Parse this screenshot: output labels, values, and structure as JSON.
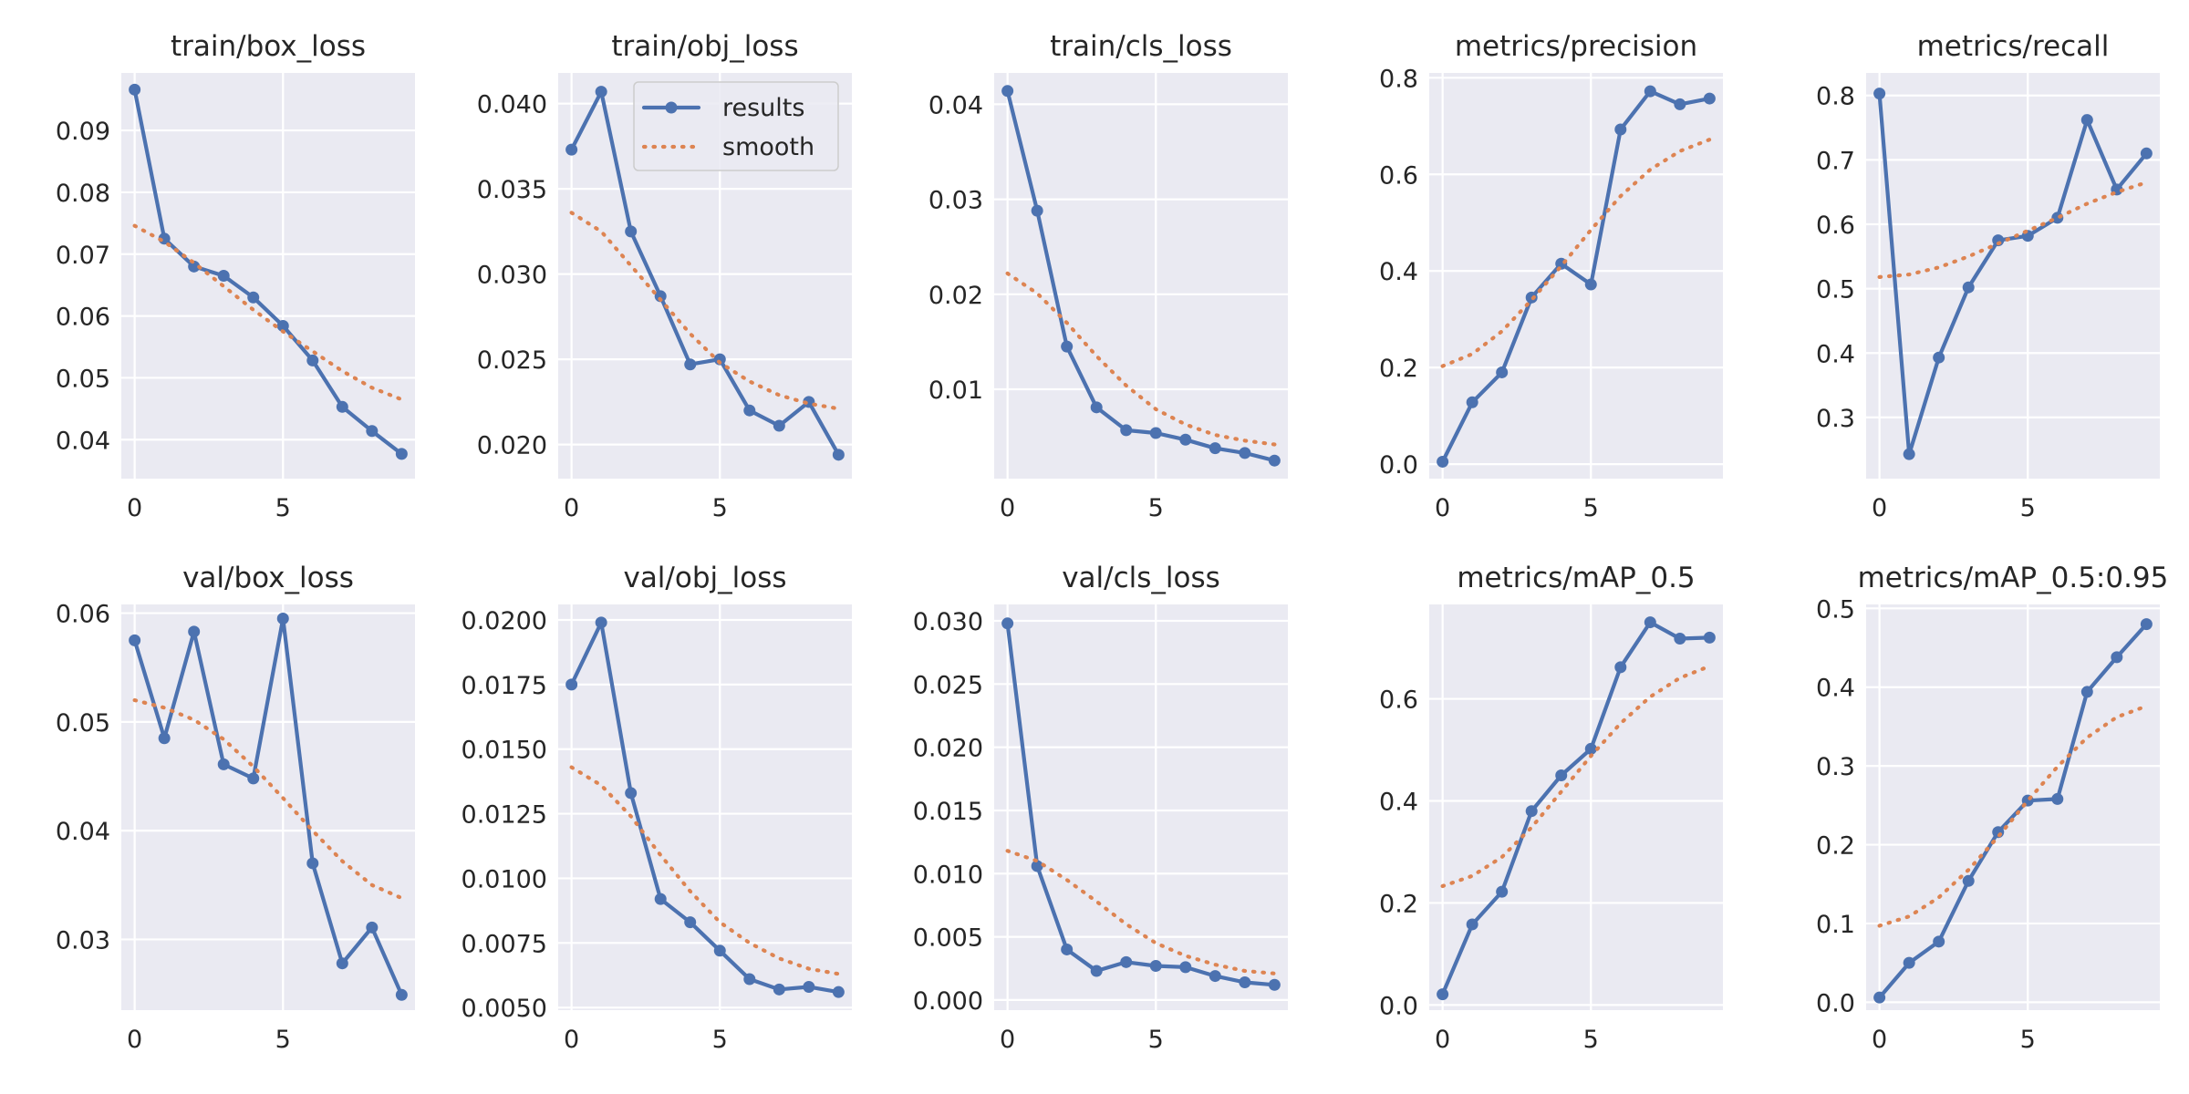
{
  "colors": {
    "background": "#ffffff",
    "plot_bg": "#eaeaf2",
    "grid": "#ffffff",
    "results": "#4c72b0",
    "smooth": "#dd8452",
    "text": "#262626"
  },
  "legend": {
    "results_label": "results",
    "smooth_label": "smooth"
  },
  "chart_data": [
    {
      "type": "line",
      "title": "train/box_loss",
      "x": [
        0,
        1,
        2,
        3,
        4,
        5,
        6,
        7,
        8,
        9
      ],
      "xlim": [
        -0.45,
        9.45
      ],
      "xticks": [
        0,
        5
      ],
      "ylim": [
        0.0337,
        0.0993
      ],
      "yticks": [
        0.04,
        0.05,
        0.06,
        0.07,
        0.08,
        0.09
      ],
      "yticklabels": [
        "0.04",
        "0.05",
        "0.06",
        "0.07",
        "0.08",
        "0.09"
      ],
      "series": [
        {
          "name": "results",
          "values": [
            0.0966,
            0.0725,
            0.068,
            0.0665,
            0.063,
            0.0584,
            0.0528,
            0.0453,
            0.0414,
            0.0377
          ]
        },
        {
          "name": "smooth",
          "values": [
            0.0746,
            0.072,
            0.0686,
            0.0648,
            0.061,
            0.0575,
            0.0543,
            0.0511,
            0.0484,
            0.0465
          ]
        }
      ]
    },
    {
      "type": "line",
      "title": "train/obj_loss",
      "x": [
        0,
        1,
        2,
        3,
        4,
        5,
        6,
        7,
        8,
        9
      ],
      "xlim": [
        -0.45,
        9.45
      ],
      "xticks": [
        0,
        5
      ],
      "ylim": [
        0.018,
        0.0418
      ],
      "yticks": [
        0.02,
        0.025,
        0.03,
        0.035,
        0.04
      ],
      "yticklabels": [
        "0.020",
        "0.025",
        "0.030",
        "0.035",
        "0.040"
      ],
      "legend": true,
      "series": [
        {
          "name": "results",
          "values": [
            0.0373,
            0.0407,
            0.0325,
            0.0287,
            0.0247,
            0.025,
            0.022,
            0.0211,
            0.0225,
            0.0194
          ]
        },
        {
          "name": "smooth",
          "values": [
            0.0336,
            0.0325,
            0.0305,
            0.0285,
            0.0265,
            0.0248,
            0.0237,
            0.0229,
            0.0224,
            0.0221
          ]
        }
      ]
    },
    {
      "type": "line",
      "title": "train/cls_loss",
      "x": [
        0,
        1,
        2,
        3,
        4,
        5,
        6,
        7,
        8,
        9
      ],
      "xlim": [
        -0.45,
        9.45
      ],
      "xticks": [
        0,
        5
      ],
      "ylim": [
        0.0006,
        0.0433
      ],
      "yticks": [
        0.01,
        0.02,
        0.03,
        0.04
      ],
      "yticklabels": [
        "0.01",
        "0.02",
        "0.03",
        "0.04"
      ],
      "series": [
        {
          "name": "results",
          "values": [
            0.0414,
            0.0288,
            0.0145,
            0.0081,
            0.0057,
            0.0054,
            0.0047,
            0.0038,
            0.0033,
            0.0025
          ]
        },
        {
          "name": "smooth",
          "values": [
            0.0222,
            0.0201,
            0.017,
            0.0135,
            0.0104,
            0.0079,
            0.0063,
            0.0052,
            0.0046,
            0.0042
          ]
        }
      ]
    },
    {
      "type": "line",
      "title": "metrics/precision",
      "x": [
        0,
        1,
        2,
        3,
        4,
        5,
        6,
        7,
        8,
        9
      ],
      "xlim": [
        -0.45,
        9.45
      ],
      "xticks": [
        0,
        5
      ],
      "ylim": [
        -0.03,
        0.81
      ],
      "yticks": [
        0.0,
        0.2,
        0.4,
        0.6,
        0.8
      ],
      "yticklabels": [
        "0.0",
        "0.2",
        "0.4",
        "0.6",
        "0.8"
      ],
      "series": [
        {
          "name": "results",
          "values": [
            0.005,
            0.128,
            0.19,
            0.345,
            0.415,
            0.372,
            0.693,
            0.772,
            0.745,
            0.757
          ]
        },
        {
          "name": "smooth",
          "values": [
            0.203,
            0.228,
            0.275,
            0.34,
            0.41,
            0.485,
            0.555,
            0.61,
            0.648,
            0.672
          ]
        }
      ]
    },
    {
      "type": "line",
      "title": "metrics/recall",
      "x": [
        0,
        1,
        2,
        3,
        4,
        5,
        6,
        7,
        8,
        9
      ],
      "xlim": [
        -0.45,
        9.45
      ],
      "xticks": [
        0,
        5
      ],
      "ylim": [
        0.205,
        0.835
      ],
      "yticks": [
        0.3,
        0.4,
        0.5,
        0.6,
        0.7,
        0.8
      ],
      "yticklabels": [
        "0.3",
        "0.4",
        "0.5",
        "0.6",
        "0.7",
        "0.8"
      ],
      "series": [
        {
          "name": "results",
          "values": [
            0.803,
            0.243,
            0.393,
            0.502,
            0.575,
            0.582,
            0.61,
            0.762,
            0.654,
            0.71
          ]
        },
        {
          "name": "smooth",
          "values": [
            0.518,
            0.522,
            0.533,
            0.55,
            0.57,
            0.59,
            0.61,
            0.632,
            0.65,
            0.665
          ]
        }
      ]
    },
    {
      "type": "line",
      "title": "val/box_loss",
      "x": [
        0,
        1,
        2,
        3,
        4,
        5,
        6,
        7,
        8,
        9
      ],
      "xlim": [
        -0.45,
        9.45
      ],
      "xticks": [
        0,
        5
      ],
      "ylim": [
        0.0235,
        0.0608
      ],
      "yticks": [
        0.03,
        0.04,
        0.05,
        0.06
      ],
      "yticklabels": [
        "0.03",
        "0.04",
        "0.05",
        "0.06"
      ],
      "series": [
        {
          "name": "results",
          "values": [
            0.0575,
            0.0485,
            0.0583,
            0.0461,
            0.0448,
            0.0595,
            0.037,
            0.0278,
            0.0311,
            0.0249
          ]
        },
        {
          "name": "smooth",
          "values": [
            0.052,
            0.0513,
            0.0502,
            0.0484,
            0.0459,
            0.043,
            0.04,
            0.0372,
            0.035,
            0.0338
          ]
        }
      ]
    },
    {
      "type": "line",
      "title": "val/obj_loss",
      "x": [
        0,
        1,
        2,
        3,
        4,
        5,
        6,
        7,
        8,
        9
      ],
      "xlim": [
        -0.45,
        9.45
      ],
      "xticks": [
        0,
        5
      ],
      "ylim": [
        0.0049,
        0.0206
      ],
      "yticks": [
        0.005,
        0.0075,
        0.01,
        0.0125,
        0.015,
        0.0175,
        0.02
      ],
      "yticklabels": [
        "0.0050",
        "0.0075",
        "0.0100",
        "0.0125",
        "0.0150",
        "0.0175",
        "0.0200"
      ],
      "series": [
        {
          "name": "results",
          "values": [
            0.0175,
            0.0199,
            0.0133,
            0.0092,
            0.0083,
            0.0072,
            0.0061,
            0.0057,
            0.0058,
            0.0056
          ]
        },
        {
          "name": "smooth",
          "values": [
            0.0143,
            0.0136,
            0.0124,
            0.0109,
            0.0095,
            0.0083,
            0.0075,
            0.0069,
            0.0065,
            0.0063
          ]
        }
      ]
    },
    {
      "type": "line",
      "title": "val/cls_loss",
      "x": [
        0,
        1,
        2,
        3,
        4,
        5,
        6,
        7,
        8,
        9
      ],
      "xlim": [
        -0.45,
        9.45
      ],
      "xticks": [
        0,
        5
      ],
      "ylim": [
        -0.0008,
        0.0313
      ],
      "yticks": [
        0.0,
        0.005,
        0.01,
        0.015,
        0.02,
        0.025,
        0.03
      ],
      "yticklabels": [
        "0.000",
        "0.005",
        "0.010",
        "0.015",
        "0.020",
        "0.025",
        "0.030"
      ],
      "series": [
        {
          "name": "results",
          "values": [
            0.0298,
            0.0106,
            0.004,
            0.0023,
            0.003,
            0.0027,
            0.0026,
            0.0019,
            0.0014,
            0.0012
          ]
        },
        {
          "name": "smooth",
          "values": [
            0.0118,
            0.011,
            0.0095,
            0.0078,
            0.006,
            0.0045,
            0.0035,
            0.0028,
            0.0023,
            0.0021
          ]
        }
      ]
    },
    {
      "type": "line",
      "title": "metrics/mAP_0.5",
      "x": [
        0,
        1,
        2,
        3,
        4,
        5,
        6,
        7,
        8,
        9
      ],
      "xlim": [
        -0.45,
        9.45
      ],
      "xticks": [
        0,
        5
      ],
      "ylim": [
        -0.01,
        0.785
      ],
      "yticks": [
        0.0,
        0.2,
        0.4,
        0.6
      ],
      "yticklabels": [
        "0.0",
        "0.2",
        "0.4",
        "0.6"
      ],
      "series": [
        {
          "name": "results",
          "values": [
            0.021,
            0.158,
            0.222,
            0.38,
            0.45,
            0.502,
            0.662,
            0.75,
            0.718,
            0.72
          ]
        },
        {
          "name": "smooth",
          "values": [
            0.233,
            0.253,
            0.29,
            0.348,
            0.418,
            0.488,
            0.552,
            0.604,
            0.641,
            0.664
          ]
        }
      ]
    },
    {
      "type": "line",
      "title": "metrics/mAP_0.5:0.95",
      "x": [
        0,
        1,
        2,
        3,
        4,
        5,
        6,
        7,
        8,
        9
      ],
      "xlim": [
        -0.45,
        9.45
      ],
      "xticks": [
        0,
        5
      ],
      "ylim": [
        -0.01,
        0.505
      ],
      "yticks": [
        0.0,
        0.1,
        0.2,
        0.3,
        0.4,
        0.5
      ],
      "yticklabels": [
        "0.0",
        "0.1",
        "0.2",
        "0.3",
        "0.4",
        "0.5"
      ],
      "series": [
        {
          "name": "results",
          "values": [
            0.006,
            0.05,
            0.077,
            0.154,
            0.216,
            0.256,
            0.258,
            0.394,
            0.438,
            0.48
          ]
        },
        {
          "name": "smooth",
          "values": [
            0.097,
            0.109,
            0.133,
            0.168,
            0.21,
            0.256,
            0.299,
            0.336,
            0.362,
            0.376
          ]
        }
      ]
    }
  ]
}
